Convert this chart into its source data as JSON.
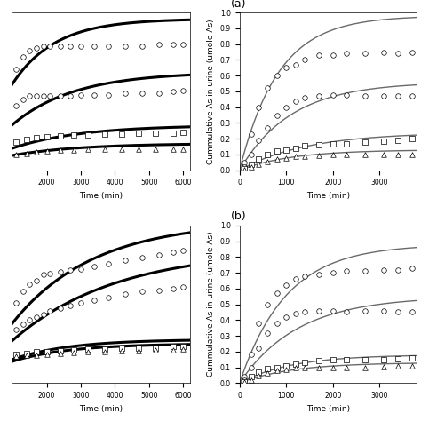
{
  "panels": [
    {
      "label": "",
      "xlim": [
        1000,
        6200
      ],
      "xlabel": "Time (min)",
      "ylabel": "",
      "show_yaxis": false,
      "xticks": [
        2000,
        3000,
        4000,
        5000,
        6000
      ],
      "series": [
        {
          "marker": "o",
          "color": "black",
          "linewidth": 2.2,
          "scatter_x": [
            1100,
            1300,
            1500,
            1700,
            1900,
            2100,
            2400,
            2700,
            3000,
            3400,
            3800,
            4300,
            4800,
            5300,
            5700,
            6000
          ],
          "scatter_y": [
            0.62,
            0.7,
            0.74,
            0.76,
            0.77,
            0.77,
            0.77,
            0.77,
            0.77,
            0.77,
            0.77,
            0.77,
            0.77,
            0.78,
            0.78,
            0.78
          ],
          "curve_t_start": 0,
          "curve_params": {
            "a": 0.95,
            "b": 0.0008
          }
        },
        {
          "marker": "o",
          "color": "black",
          "linewidth": 2.2,
          "scatter_x": [
            1100,
            1300,
            1500,
            1700,
            1900,
            2100,
            2400,
            2700,
            3000,
            3400,
            3800,
            4300,
            4800,
            5300,
            5700,
            6000
          ],
          "scatter_y": [
            0.38,
            0.42,
            0.44,
            0.44,
            0.44,
            0.44,
            0.44,
            0.44,
            0.45,
            0.45,
            0.45,
            0.46,
            0.46,
            0.46,
            0.47,
            0.48
          ],
          "curve_t_start": 0,
          "curve_params": {
            "a": 0.6,
            "b": 0.00055
          }
        },
        {
          "marker": "s",
          "color": "black",
          "linewidth": 2.2,
          "scatter_x": [
            1100,
            1400,
            1700,
            2000,
            2400,
            2800,
            3200,
            3700,
            4200,
            4700,
            5200,
            5700,
            6000
          ],
          "scatter_y": [
            0.14,
            0.155,
            0.165,
            0.175,
            0.18,
            0.185,
            0.185,
            0.19,
            0.19,
            0.195,
            0.195,
            0.195,
            0.2
          ],
          "curve_t_start": 0,
          "curve_params": {
            "a": 0.25,
            "b": 0.0005
          }
        },
        {
          "marker": "^",
          "color": "black",
          "linewidth": 2.2,
          "scatter_x": [
            1100,
            1400,
            1700,
            2000,
            2400,
            2800,
            3200,
            3700,
            4200,
            4700,
            5200,
            5700,
            6000
          ],
          "scatter_y": [
            0.055,
            0.065,
            0.072,
            0.078,
            0.083,
            0.087,
            0.09,
            0.09,
            0.09,
            0.09,
            0.09,
            0.09,
            0.09
          ],
          "curve_t_start": 0,
          "curve_params": {
            "a": 0.13,
            "b": 0.0005
          }
        }
      ]
    },
    {
      "label": "(a)",
      "xlim": [
        0,
        3800
      ],
      "ylim": [
        0,
        1.0
      ],
      "xlabel": "Time (min)",
      "ylabel": "Cummulative As in urine (umole As)",
      "show_yaxis": true,
      "xticks": [
        0,
        1000,
        2000,
        3000
      ],
      "yticks": [
        0,
        0.1,
        0.2,
        0.3,
        0.4,
        0.5,
        0.6,
        0.7,
        0.8,
        0.9,
        1.0
      ],
      "series": [
        {
          "marker": "o",
          "color": "dimgray",
          "linewidth": 1.0,
          "scatter_x": [
            100,
            250,
            400,
            600,
            800,
            1000,
            1200,
            1400,
            1700,
            2000,
            2300,
            2700,
            3100,
            3400,
            3700
          ],
          "scatter_y": [
            0.05,
            0.23,
            0.4,
            0.52,
            0.6,
            0.65,
            0.67,
            0.7,
            0.73,
            0.73,
            0.74,
            0.74,
            0.75,
            0.74,
            0.75
          ],
          "curve_t_start": 0,
          "curve_params": {
            "a": 0.98,
            "b": 0.0012
          }
        },
        {
          "marker": "o",
          "color": "dimgray",
          "linewidth": 1.0,
          "scatter_x": [
            100,
            250,
            400,
            600,
            800,
            1000,
            1200,
            1400,
            1700,
            2000,
            2300,
            2700,
            3100,
            3400,
            3700
          ],
          "scatter_y": [
            0.02,
            0.1,
            0.19,
            0.27,
            0.35,
            0.4,
            0.44,
            0.46,
            0.47,
            0.48,
            0.48,
            0.47,
            0.47,
            0.47,
            0.47
          ],
          "curve_t_start": 0,
          "curve_params": {
            "a": 0.56,
            "b": 0.0009
          }
        },
        {
          "marker": "s",
          "color": "dimgray",
          "linewidth": 1.0,
          "scatter_x": [
            100,
            250,
            400,
            600,
            800,
            1000,
            1200,
            1400,
            1700,
            2000,
            2300,
            2700,
            3100,
            3400,
            3700
          ],
          "scatter_y": [
            0.01,
            0.04,
            0.07,
            0.1,
            0.12,
            0.13,
            0.14,
            0.155,
            0.16,
            0.17,
            0.17,
            0.18,
            0.185,
            0.19,
            0.2
          ],
          "curve_t_start": 0,
          "curve_params": {
            "a": 0.24,
            "b": 0.0007
          }
        },
        {
          "marker": "^",
          "color": "dimgray",
          "linewidth": 1.0,
          "scatter_x": [
            100,
            250,
            400,
            600,
            800,
            1000,
            1200,
            1400,
            1700,
            2000,
            2300,
            2700,
            3100,
            3400,
            3700
          ],
          "scatter_y": [
            0.005,
            0.02,
            0.04,
            0.055,
            0.07,
            0.08,
            0.09,
            0.09,
            0.095,
            0.1,
            0.1,
            0.1,
            0.1,
            0.1,
            0.1
          ],
          "curve_t_start": 0,
          "curve_params": {
            "a": 0.13,
            "b": 0.0009
          }
        }
      ]
    },
    {
      "label": "",
      "xlim": [
        1000,
        6200
      ],
      "xlabel": "Time (min)",
      "ylabel": "",
      "show_yaxis": false,
      "xticks": [
        2000,
        3000,
        4000,
        5000,
        6000
      ],
      "series": [
        {
          "marker": "o",
          "color": "black",
          "linewidth": 2.2,
          "scatter_x": [
            1100,
            1300,
            1500,
            1700,
            1900,
            2100,
            2400,
            2700,
            3000,
            3400,
            3800,
            4300,
            4800,
            5300,
            5700,
            6000
          ],
          "scatter_y": [
            0.52,
            0.6,
            0.65,
            0.68,
            0.72,
            0.73,
            0.74,
            0.75,
            0.76,
            0.78,
            0.8,
            0.82,
            0.84,
            0.86,
            0.88,
            0.89
          ],
          "curve_t_start": 0,
          "curve_params": {
            "a": 1.1,
            "b": 0.00042
          }
        },
        {
          "marker": "o",
          "color": "black",
          "linewidth": 2.2,
          "scatter_x": [
            1100,
            1300,
            1500,
            1700,
            1900,
            2100,
            2400,
            2700,
            3000,
            3400,
            3800,
            4300,
            4800,
            5300,
            5700,
            6000
          ],
          "scatter_y": [
            0.33,
            0.37,
            0.4,
            0.42,
            0.44,
            0.46,
            0.48,
            0.5,
            0.52,
            0.54,
            0.56,
            0.58,
            0.6,
            0.61,
            0.62,
            0.63
          ],
          "curve_t_start": 0,
          "curve_params": {
            "a": 0.9,
            "b": 0.00033
          }
        },
        {
          "marker": "s",
          "color": "black",
          "linewidth": 2.2,
          "scatter_x": [
            1100,
            1400,
            1700,
            2000,
            2400,
            2800,
            3200,
            3700,
            4200,
            4700,
            5200,
            5700,
            6000
          ],
          "scatter_y": [
            0.155,
            0.16,
            0.17,
            0.175,
            0.18,
            0.185,
            0.19,
            0.19,
            0.195,
            0.2,
            0.2,
            0.21,
            0.21
          ],
          "curve_t_start": 0,
          "curve_params": {
            "a": 0.26,
            "b": 0.0006
          }
        },
        {
          "marker": "^",
          "color": "black",
          "linewidth": 2.2,
          "scatter_x": [
            1100,
            1400,
            1700,
            2000,
            2400,
            2800,
            3200,
            3700,
            4200,
            4700,
            5200,
            5700,
            6000
          ],
          "scatter_y": [
            0.14,
            0.145,
            0.15,
            0.155,
            0.16,
            0.165,
            0.17,
            0.175,
            0.18,
            0.18,
            0.185,
            0.185,
            0.19
          ],
          "curve_t_start": 0,
          "curve_params": {
            "a": 0.23,
            "b": 0.0006
          }
        }
      ]
    },
    {
      "label": "(b)",
      "xlim": [
        0,
        3800
      ],
      "ylim": [
        0,
        1.0
      ],
      "xlabel": "Time (min)",
      "ylabel": "Cummulative As in urine (umole As)",
      "show_yaxis": true,
      "xticks": [
        0,
        1000,
        2000,
        3000
      ],
      "yticks": [
        0,
        0.1,
        0.2,
        0.3,
        0.4,
        0.5,
        0.6,
        0.7,
        0.8,
        0.9,
        1.0
      ],
      "series": [
        {
          "marker": "o",
          "color": "dimgray",
          "linewidth": 1.0,
          "scatter_x": [
            100,
            250,
            400,
            600,
            800,
            1000,
            1200,
            1400,
            1700,
            2000,
            2300,
            2700,
            3100,
            3400,
            3700
          ],
          "scatter_y": [
            0.04,
            0.18,
            0.38,
            0.5,
            0.57,
            0.62,
            0.66,
            0.68,
            0.69,
            0.7,
            0.71,
            0.71,
            0.72,
            0.72,
            0.73
          ],
          "curve_t_start": 0,
          "curve_params": {
            "a": 0.88,
            "b": 0.001
          }
        },
        {
          "marker": "o",
          "color": "dimgray",
          "linewidth": 1.0,
          "scatter_x": [
            100,
            250,
            400,
            600,
            800,
            1000,
            1200,
            1400,
            1700,
            2000,
            2300,
            2700,
            3100,
            3400,
            3700
          ],
          "scatter_y": [
            0.02,
            0.1,
            0.22,
            0.32,
            0.38,
            0.42,
            0.44,
            0.45,
            0.46,
            0.46,
            0.45,
            0.46,
            0.46,
            0.45,
            0.45
          ],
          "curve_t_start": 0,
          "curve_params": {
            "a": 0.55,
            "b": 0.0008
          }
        },
        {
          "marker": "s",
          "color": "dimgray",
          "linewidth": 1.0,
          "scatter_x": [
            100,
            250,
            400,
            600,
            800,
            1000,
            1200,
            1400,
            1700,
            2000,
            2300,
            2700,
            3100,
            3400,
            3700
          ],
          "scatter_y": [
            0.01,
            0.04,
            0.07,
            0.09,
            0.1,
            0.11,
            0.12,
            0.13,
            0.14,
            0.15,
            0.15,
            0.15,
            0.15,
            0.155,
            0.16
          ],
          "curve_t_start": 0,
          "curve_params": {
            "a": 0.18,
            "b": 0.0009
          }
        },
        {
          "marker": "^",
          "color": "dimgray",
          "linewidth": 1.0,
          "scatter_x": [
            100,
            250,
            400,
            600,
            800,
            1000,
            1200,
            1400,
            1700,
            2000,
            2300,
            2700,
            3100,
            3400,
            3700
          ],
          "scatter_y": [
            0.005,
            0.02,
            0.045,
            0.065,
            0.078,
            0.088,
            0.095,
            0.1,
            0.1,
            0.1,
            0.1,
            0.1,
            0.105,
            0.11,
            0.11
          ],
          "curve_t_start": 0,
          "curve_params": {
            "a": 0.13,
            "b": 0.0009
          }
        }
      ]
    }
  ],
  "bg_color": "#ffffff",
  "marker_size": 4,
  "marker_facecolor": "white",
  "marker_edgecolor": "black",
  "fontsize_label": 6.5,
  "fontsize_tick": 5.5,
  "fontsize_panel_label": 9
}
